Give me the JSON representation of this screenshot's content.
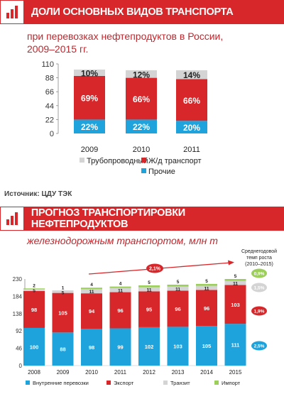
{
  "section1": {
    "title": "ДОЛИ ОСНОВНЫХ ВИДОВ ТРАНСПОРТА",
    "subtitle_line1": "при перевозках нефтепродуктов в России,",
    "subtitle_line2": "2009–2015 гг."
  },
  "source": "Источник: ЦДУ ТЭК",
  "section2": {
    "title": "ПРОГНОЗ ТРАНСПОРТИРОВКИ НЕФТЕПРОДУКТОВ",
    "subtitle": "железнодорожным транспортом, млн т"
  },
  "colors": {
    "red": "#d8272a",
    "blue": "#1fa3dc",
    "gray": "#d4d4d4",
    "green": "#9ccf5a",
    "dark_red": "#8b1a1c"
  },
  "chart_data": [
    {
      "type": "bar",
      "stacked": true,
      "categories": [
        "2009",
        "2010",
        "2011"
      ],
      "series": [
        {
          "name": "Прочие",
          "values": [
            22,
            22,
            20
          ],
          "labels": [
            "22%",
            "22%",
            "20%"
          ],
          "color": "#1fa3dc"
        },
        {
          "name": "Ж/д транспорт",
          "values": [
            69,
            66,
            66
          ],
          "labels": [
            "69%",
            "66%",
            "66%"
          ],
          "color": "#d8272a"
        },
        {
          "name": "Трубопроводный",
          "values": [
            10,
            12,
            14
          ],
          "labels": [
            "10%",
            "12%",
            "14%"
          ],
          "color": "#d4d4d4"
        }
      ],
      "yticks": [
        "0",
        "22",
        "44",
        "66",
        "88",
        "110"
      ],
      "ylim": [
        0,
        110
      ],
      "legend_order": [
        "Трубопроводный",
        "Ж/д транспорт",
        "Прочие"
      ]
    },
    {
      "type": "bar",
      "stacked": true,
      "categories": [
        "2008",
        "2009",
        "2010",
        "2011",
        "2012",
        "2013",
        "2014",
        "2015"
      ],
      "series": [
        {
          "name": "Внутренние перевозки",
          "values": [
            100,
            88,
            98,
            99,
            102,
            103,
            105,
            111
          ],
          "color": "#1fa3dc"
        },
        {
          "name": "Экспорт",
          "values": [
            98,
            105,
            94,
            96,
            95,
            96,
            96,
            103
          ],
          "color": "#d8272a"
        },
        {
          "name": "Транзит",
          "values": [
            5,
            5,
            11,
            11,
            11,
            11,
            11,
            11
          ],
          "color": "#d4d4d4"
        },
        {
          "name": "Импорт",
          "values": [
            2,
            1,
            4,
            4,
            5,
            5,
            5,
            5
          ],
          "color": "#9ccf5a"
        }
      ],
      "yticks": [
        "0",
        "46",
        "92",
        "138",
        "184",
        "230"
      ],
      "ylim": [
        0,
        230
      ],
      "growth_arrow_label": "2,1%",
      "growth_title_lines": [
        "Среднегодовой",
        "темп роста",
        "(2010–2015)"
      ],
      "growth_rates": [
        {
          "label": "0,9%",
          "color": "#9ccf5a"
        },
        {
          "label": "1,5%",
          "color": "#d4d4d4"
        },
        {
          "label": "1,9%",
          "color": "#d8272a"
        },
        {
          "label": "2,5%",
          "color": "#1fa3dc"
        }
      ]
    }
  ]
}
